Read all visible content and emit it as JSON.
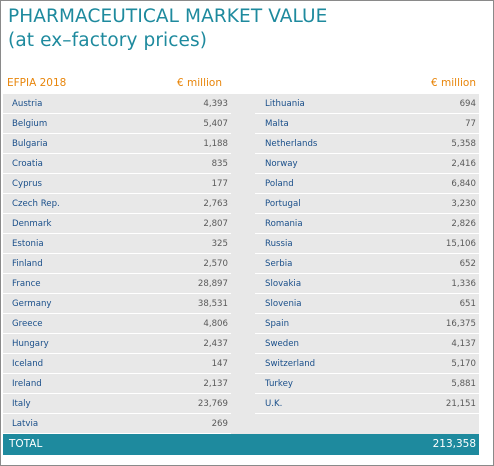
{
  "title_line1": "PHARMACEUTICAL MARKET VALUE",
  "title_line2": "(at ex–factory prices)",
  "header": {
    "source": "EFPIA 2018",
    "unit_left": "€ million",
    "unit_right": "€ million"
  },
  "left_rows": [
    {
      "country": "Austria",
      "value": "4,393"
    },
    {
      "country": "Belgium",
      "value": "5,407"
    },
    {
      "country": "Bulgaria",
      "value": "1,188"
    },
    {
      "country": "Croatia",
      "value": "835"
    },
    {
      "country": "Cyprus",
      "value": "177"
    },
    {
      "country": "Czech Rep.",
      "value": "2,763"
    },
    {
      "country": "Denmark",
      "value": "2,807"
    },
    {
      "country": "Estonia",
      "value": "325"
    },
    {
      "country": "Finland",
      "value": "2,570"
    },
    {
      "country": "France",
      "value": "28,897"
    },
    {
      "country": "Germany",
      "value": "38,531"
    },
    {
      "country": "Greece",
      "value": "4,806"
    },
    {
      "country": "Hungary",
      "value": "2,437"
    },
    {
      "country": "Iceland",
      "value": "147"
    },
    {
      "country": "Ireland",
      "value": "2,137"
    },
    {
      "country": "Italy",
      "value": "23,769"
    },
    {
      "country": "Latvia",
      "value": "269"
    }
  ],
  "right_rows": [
    {
      "country": "Lithuania",
      "value": "694"
    },
    {
      "country": "Malta",
      "value": "77"
    },
    {
      "country": "Netherlands",
      "value": "5,358"
    },
    {
      "country": "Norway",
      "value": "2,416"
    },
    {
      "country": "Poland",
      "value": "6,840"
    },
    {
      "country": "Portugal",
      "value": "3,230"
    },
    {
      "country": "Romania",
      "value": "2,826"
    },
    {
      "country": "Russia",
      "value": "15,106"
    },
    {
      "country": "Serbia",
      "value": "652"
    },
    {
      "country": "Slovakia",
      "value": "1,336"
    },
    {
      "country": "Slovenia",
      "value": "651"
    },
    {
      "country": "Spain",
      "value": "16,375"
    },
    {
      "country": "Sweden",
      "value": "4,137"
    },
    {
      "country": "Switzerland",
      "value": "5,170"
    },
    {
      "country": "Turkey",
      "value": "5,881"
    },
    {
      "country": "U.K.",
      "value": "21,151"
    }
  ],
  "total": {
    "label": "TOTAL",
    "value": "213,358"
  }
}
